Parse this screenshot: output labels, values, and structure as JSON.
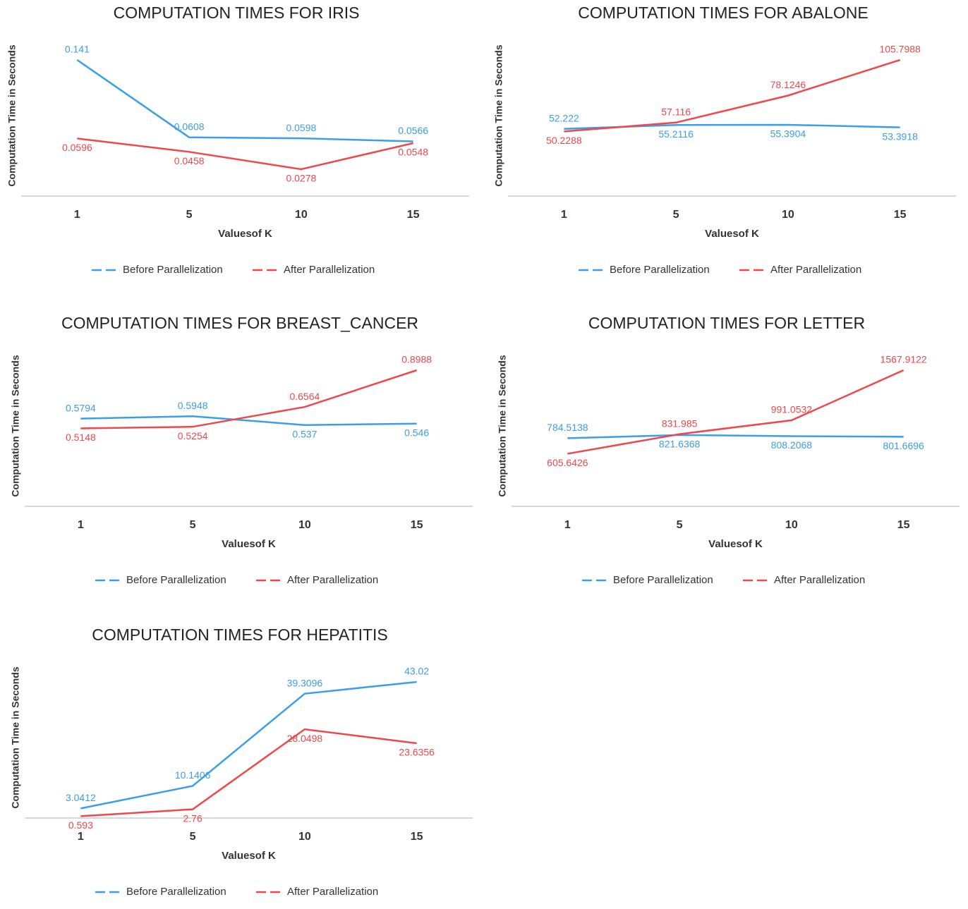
{
  "chart_data": [
    {
      "type": "line",
      "title": "COMPUTATION TIMES FOR IRIS",
      "x_label": "Valuesof K",
      "y_label": "Computation Time in Seconds",
      "categories": [
        "1",
        "5",
        "10",
        "15"
      ],
      "series": [
        {
          "name": "Before Parallelization",
          "color": "#3b9ee8",
          "values": [
            0.141,
            0.0608,
            0.0598,
            0.0566
          ]
        },
        {
          "name": "After Parallelization",
          "color": "#f0474c",
          "values": [
            0.0596,
            0.0458,
            0.0278,
            0.0548
          ]
        }
      ]
    },
    {
      "type": "line",
      "title": "COMPUTATION TIMES FOR ABALONE",
      "x_label": "Valuesof K",
      "y_label": "Computation Time in Seconds",
      "categories": [
        "1",
        "5",
        "10",
        "15"
      ],
      "series": [
        {
          "name": "Before Parallelization",
          "color": "#3b9ee8",
          "values": [
            52.222,
            55.2116,
            55.3904,
            53.3918
          ]
        },
        {
          "name": "After Parallelization",
          "color": "#f0474c",
          "values": [
            50.2288,
            57.116,
            78.1246,
            105.7988
          ]
        }
      ]
    },
    {
      "type": "line",
      "title": "COMPUTATION TIMES FOR BREAST_CANCER",
      "x_label": "Valuesof K",
      "y_label": "Computation Time in Seconds",
      "categories": [
        "1",
        "5",
        "10",
        "15"
      ],
      "series": [
        {
          "name": "Before Parallelization",
          "color": "#3b9ee8",
          "values": [
            0.5794,
            0.5948,
            0.537,
            0.546
          ]
        },
        {
          "name": "After Parallelization",
          "color": "#f0474c",
          "values": [
            0.5148,
            0.5254,
            0.6564,
            0.8988
          ]
        }
      ]
    },
    {
      "type": "line",
      "title": "COMPUTATION TIMES FOR LETTER",
      "x_label": "Valuesof K",
      "y_label": "Computation Time in Seconds",
      "categories": [
        "1",
        "5",
        "10",
        "15"
      ],
      "series": [
        {
          "name": "Before Parallelization",
          "color": "#3b9ee8",
          "values": [
            784.5138,
            821.6368,
            808.2068,
            801.6696
          ]
        },
        {
          "name": "After Parallelization",
          "color": "#f0474c",
          "values": [
            605.6426,
            831.985,
            991.0532,
            1567.9122
          ]
        }
      ]
    },
    {
      "type": "line",
      "title": "COMPUTATION TIMES FOR HEPATITIS",
      "x_label": "Valuesof K",
      "y_label": "Computation Time in Seconds",
      "categories": [
        "1",
        "5",
        "10",
        "15"
      ],
      "series": [
        {
          "name": "Before Parallelization",
          "color": "#3b9ee8",
          "values": [
            3.0412,
            10.1406,
            39.3096,
            43.02
          ]
        },
        {
          "name": "After Parallelization",
          "color": "#f0474c",
          "values": [
            0.593,
            2.76,
            28.0498,
            23.6356
          ]
        }
      ]
    }
  ]
}
